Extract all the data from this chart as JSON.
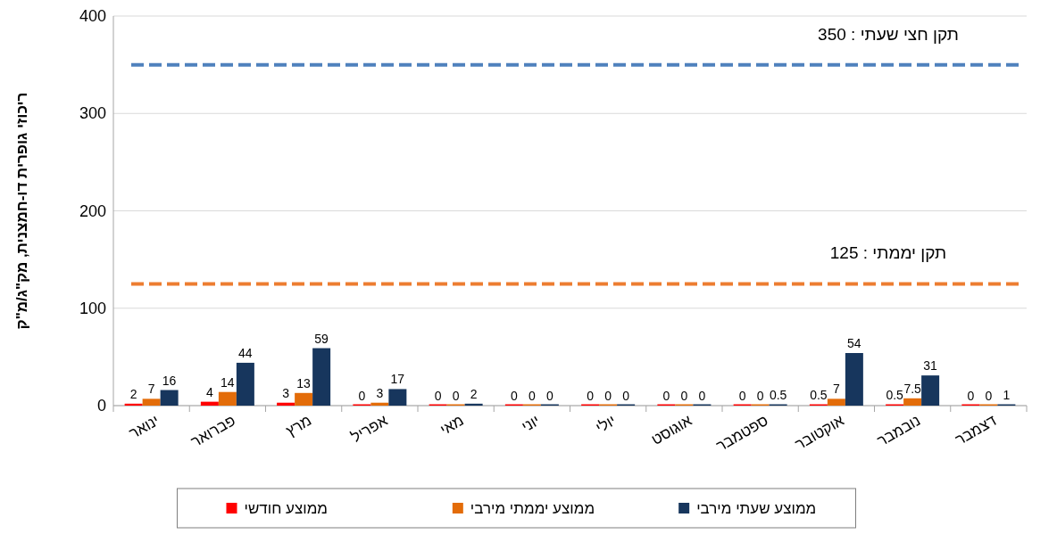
{
  "chart_data": {
    "type": "bar",
    "ylabel": "ריכוזי גופרית דו-חמצנית, מק\"ג/מ\"ק",
    "categories": [
      "ינואר",
      "פברואר",
      "מרץ",
      "אפריל",
      "מאי",
      "יוני",
      "יולי",
      "אוגוסט",
      "ספטמבר",
      "אוקטובר",
      "נובמבר",
      "דצמבר"
    ],
    "series": [
      {
        "name": "ממוצע חודשי",
        "color": "#ff0000",
        "values": [
          2,
          4,
          3,
          0,
          0,
          0,
          0,
          0,
          0,
          0.5,
          0.5,
          0
        ]
      },
      {
        "name": "ממוצע יממתי מירבי",
        "color": "#e36c09",
        "values": [
          7,
          14,
          13,
          3,
          0,
          0,
          0,
          0,
          0,
          7,
          7.5,
          0
        ]
      },
      {
        "name": "ממוצע שעתי מירבי",
        "color": "#17365d",
        "values": [
          16,
          44,
          59,
          17,
          2,
          0,
          0,
          0,
          0.5,
          54,
          31,
          1
        ]
      }
    ],
    "ylim": [
      0,
      400
    ],
    "yticks": [
      0,
      100,
      200,
      300,
      400
    ],
    "grid": "y",
    "legend": "bottom",
    "data_labels": true,
    "ref_lines": [
      {
        "axis": "y",
        "value": 350,
        "label": "תקן חצי שעתי : 350",
        "color": "#4f81bd",
        "line_style": "dashed"
      },
      {
        "axis": "y",
        "value": 125,
        "label": "תקן יממתי : 125",
        "color": "#ed7d31",
        "line_style": "dashed"
      }
    ]
  }
}
